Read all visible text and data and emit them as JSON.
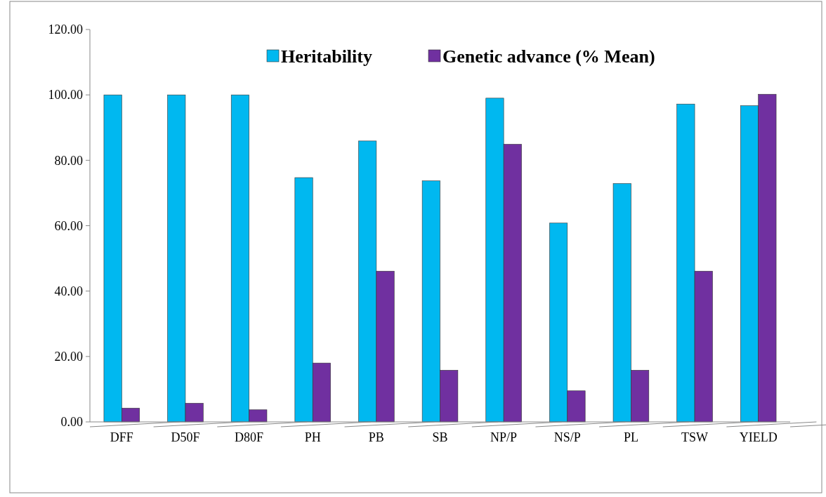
{
  "chart_data": {
    "type": "bar",
    "categories": [
      "DFF",
      "D50F",
      "D80F",
      "PH",
      "PB",
      "SB",
      "NP/P",
      "NS/P",
      "PL",
      "TSW",
      "YIELD"
    ],
    "series": [
      {
        "name": "Heritability",
        "color": "#00b8f0",
        "values": [
          100,
          100,
          100,
          74.7,
          85.9,
          73.7,
          99.0,
          60.8,
          72.9,
          97.2,
          96.7
        ]
      },
      {
        "name": "Genetic advance (% Mean)",
        "color": "#7030a0",
        "values": [
          4.2,
          5.7,
          3.7,
          18.0,
          46.1,
          15.8,
          84.9,
          9.5,
          15.8,
          46.1,
          100.2
        ]
      }
    ],
    "ylim": [
      0,
      120
    ],
    "yticks": [
      {
        "value": 0,
        "label": "0.00"
      },
      {
        "value": 20,
        "label": "20.00"
      },
      {
        "value": 40,
        "label": "40.00"
      },
      {
        "value": 60,
        "label": "60.00"
      },
      {
        "value": 80,
        "label": "80.00"
      },
      {
        "value": 100,
        "label": "100.00"
      },
      {
        "value": 120,
        "label": "120.00"
      }
    ],
    "legend": "top"
  }
}
